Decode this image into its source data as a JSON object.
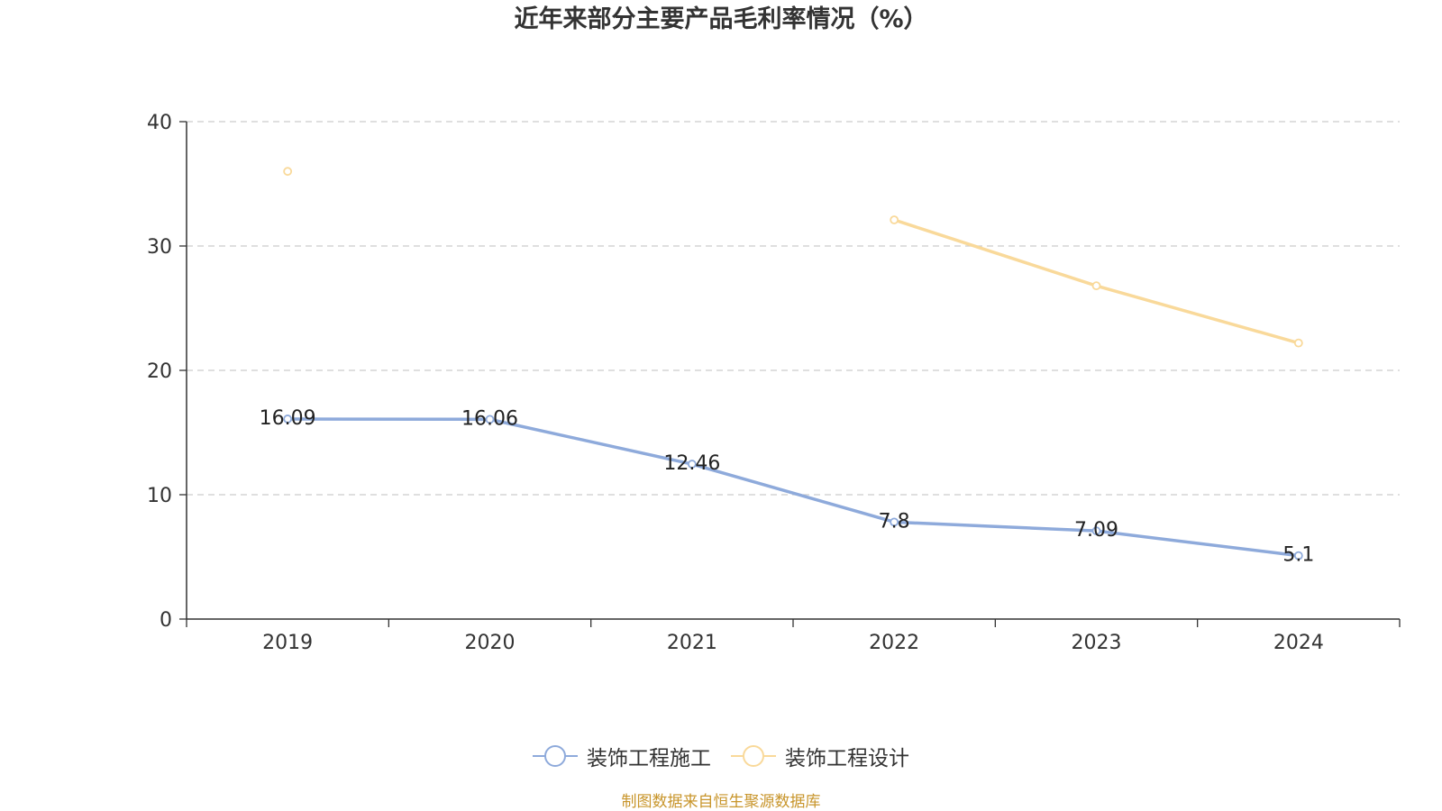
{
  "chart_data": {
    "type": "line",
    "title": "近年来部分主要产品毛利率情况（%）",
    "categories": [
      "2019",
      "2020",
      "2021",
      "2022",
      "2023",
      "2024"
    ],
    "ylim": [
      0,
      40
    ],
    "yticks": [
      0,
      10,
      20,
      30,
      40
    ],
    "grid": true,
    "legend_position": "bottom",
    "series": [
      {
        "name": "装饰工程施工",
        "color": "#8eaadb",
        "values": [
          16.09,
          16.06,
          12.46,
          7.8,
          7.09,
          5.1
        ],
        "labels": [
          "16.09",
          "16.06",
          "12.46",
          "7.8",
          "7.09",
          "5.1"
        ]
      },
      {
        "name": "装饰工程设计",
        "color": "#f9d99a",
        "values": [
          36.0,
          null,
          null,
          32.1,
          26.8,
          22.2
        ]
      }
    ]
  },
  "source_note": "制图数据来自恒生聚源数据库"
}
